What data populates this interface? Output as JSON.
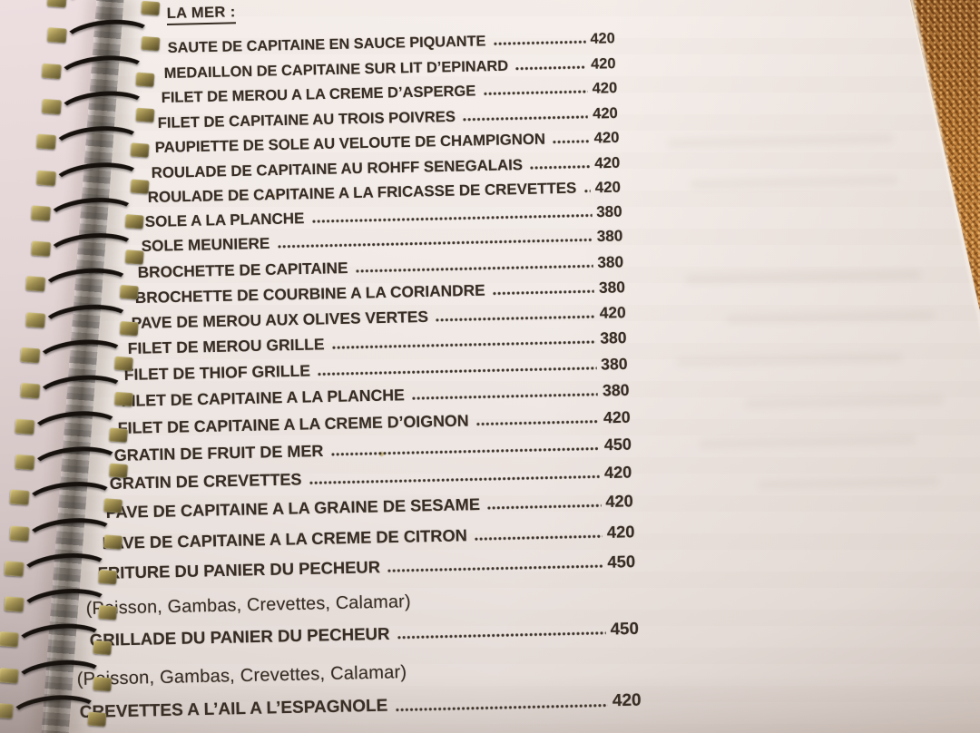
{
  "menu": {
    "section_title": "LA MER :",
    "items": [
      {
        "name": "SAUTE DE CAPITAINE EN SAUCE PIQUANTE",
        "price": "420"
      },
      {
        "name": "MEDAILLON DE CAPITAINE SUR LIT D’EPINARD",
        "price": "420"
      },
      {
        "name": "FILET DE MEROU A LA CREME D’ASPERGE",
        "price": "420"
      },
      {
        "name": "FILET DE CAPITAINE AU TROIS POIVRES",
        "price": "420"
      },
      {
        "name": "PAUPIETTE DE SOLE AU VELOUTE DE CHAMPIGNON",
        "price": "420"
      },
      {
        "name": "ROULADE DE CAPITAINE AU ROHFF SENEGALAIS",
        "price": "420"
      },
      {
        "name": "ROULADE DE CAPITAINE A LA FRICASSE DE CREVETTES",
        "price": "420"
      },
      {
        "name": "SOLE A LA PLANCHE",
        "price": "380"
      },
      {
        "name": "SOLE MEUNIERE",
        "price": "380"
      },
      {
        "name": "BROCHETTE DE CAPITAINE",
        "price": "380"
      },
      {
        "name": "BROCHETTE DE COURBINE A LA CORIANDRE",
        "price": "380"
      },
      {
        "name": "PAVE DE MEROU AUX OLIVES VERTES",
        "price": "420"
      },
      {
        "name": "FILET DE MEROU GRILLE",
        "price": "380"
      },
      {
        "name": "FILET DE THIOF GRILLE",
        "price": "380"
      },
      {
        "name": "FILET DE CAPITAINE A LA PLANCHE",
        "price": "380"
      },
      {
        "name": "FILET DE CAPITAINE A LA CREME D’OIGNON",
        "price": "420"
      },
      {
        "name": "GRATIN DE FRUIT DE MER",
        "price": "450"
      },
      {
        "name": "GRATIN DE CREVETTES",
        "price": "420"
      },
      {
        "name": "PAVE DE CAPITAINE A LA GRAINE DE SESAME",
        "price": "420"
      },
      {
        "name": "PAVE DE CAPITAINE A LA CREME DE CITRON",
        "price": "420"
      },
      {
        "name": "FRITURE DU PANIER DU PECHEUR",
        "price": "450"
      },
      {
        "note": "(Poisson, Gambas, Crevettes, Calamar)"
      },
      {
        "name": "GRILLADE DU PANIER DU PECHEUR",
        "price": "450"
      },
      {
        "note": "(Poisson, Gambas, Crevettes, Calamar)"
      },
      {
        "name": "CREVETTES A L’AIL A L’ESPAGNOLE",
        "price": "420"
      }
    ]
  },
  "colors": {
    "paper": "#f2ebe7",
    "ink": "#372d24",
    "placemat_copper": "#b5772f",
    "spiral_wire": "#16110d",
    "binding_tab": "#a8985a",
    "backdrop": "#e3d4d4"
  }
}
